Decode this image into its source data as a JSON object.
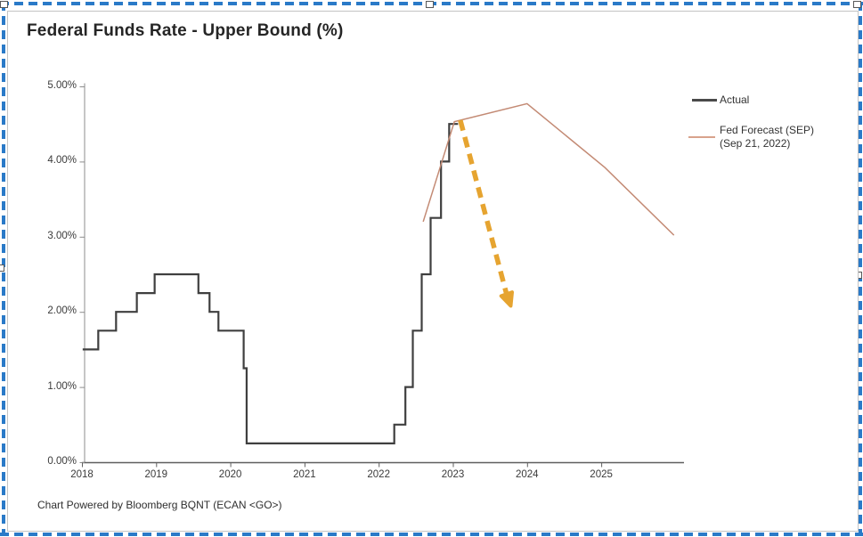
{
  "title": "Federal Funds Rate - Upper Bound (%)",
  "footer": "Chart Powered by Bloomberg BQNT (ECAN <GO>)",
  "legend": {
    "actual_label": "Actual",
    "forecast_label_line1": "Fed Forecast (SEP)",
    "forecast_label_line2": "(Sep 21, 2022)"
  },
  "colors": {
    "selection_marquee": "#2a7ac8",
    "frame_border": "#c4c4c4",
    "actual_line": "#3f3f3f",
    "forecast_line": "#c38a74",
    "legend_forecast_swatch": "#d8a28c",
    "annotation_arrow": "#e6a430",
    "axis": "#6f6f6f",
    "text": "#3a3a3a"
  },
  "chart_data": {
    "type": "line",
    "title": "Federal Funds Rate - Upper Bound (%)",
    "xlabel": "",
    "ylabel": "",
    "grid": false,
    "legend_position": "right",
    "xlim": [
      2018,
      2026.1
    ],
    "ylim": [
      0,
      5
    ],
    "x_ticks": [
      {
        "label": "2018",
        "value": 2018
      },
      {
        "label": "2019",
        "value": 2019
      },
      {
        "label": "2020",
        "value": 2020
      },
      {
        "label": "2021",
        "value": 2021
      },
      {
        "label": "2022",
        "value": 2022
      },
      {
        "label": "2023",
        "value": 2023
      },
      {
        "label": "2024",
        "value": 2024
      },
      {
        "label": "2025",
        "value": 2025
      }
    ],
    "y_ticks": [
      {
        "label": "5.00%",
        "value": 5
      },
      {
        "label": "4.00%",
        "value": 4
      },
      {
        "label": "3.00%",
        "value": 3
      },
      {
        "label": "2.00%",
        "value": 2
      },
      {
        "label": "1.00%",
        "value": 1
      },
      {
        "label": "0.00%",
        "value": 0
      }
    ],
    "series": [
      {
        "name": "Actual",
        "style": "step",
        "color": "#3f3f3f",
        "width": 2.2,
        "points": [
          {
            "x": 2018.01,
            "y": 1.5
          },
          {
            "x": 2018.22,
            "y": 1.75
          },
          {
            "x": 2018.46,
            "y": 2.0
          },
          {
            "x": 2018.74,
            "y": 2.25
          },
          {
            "x": 2018.98,
            "y": 2.5
          },
          {
            "x": 2019.57,
            "y": 2.25
          },
          {
            "x": 2019.72,
            "y": 2.0
          },
          {
            "x": 2019.84,
            "y": 1.75
          },
          {
            "x": 2020.18,
            "y": 1.25
          },
          {
            "x": 2020.22,
            "y": 0.25
          },
          {
            "x": 2022.21,
            "y": 0.5
          },
          {
            "x": 2022.36,
            "y": 1.0
          },
          {
            "x": 2022.46,
            "y": 1.75
          },
          {
            "x": 2022.58,
            "y": 2.5
          },
          {
            "x": 2022.7,
            "y": 3.25
          },
          {
            "x": 2022.84,
            "y": 4.0
          },
          {
            "x": 2022.95,
            "y": 4.5
          }
        ],
        "end_x": 2023.07
      },
      {
        "name": "Fed Forecast (SEP) (Sep 21, 2022)",
        "style": "line",
        "color": "#c38a74",
        "width": 1.5,
        "points": [
          {
            "x": 2022.6,
            "y": 3.2
          },
          {
            "x": 2023.02,
            "y": 4.53
          },
          {
            "x": 2024.0,
            "y": 4.77
          },
          {
            "x": 2025.05,
            "y": 3.92
          },
          {
            "x": 2025.98,
            "y": 3.02
          }
        ]
      }
    ],
    "annotation_arrow": {
      "description": "hand-drawn gold dashed arrow from forecast peak down toward ~2.1% in late 2023",
      "color": "#e6a430",
      "dashed": true,
      "from": {
        "x": 2023.1,
        "y": 4.55
      },
      "to": {
        "x": 2023.72,
        "y": 2.25
      },
      "tip": {
        "x": 2023.78,
        "y": 2.08
      }
    }
  }
}
